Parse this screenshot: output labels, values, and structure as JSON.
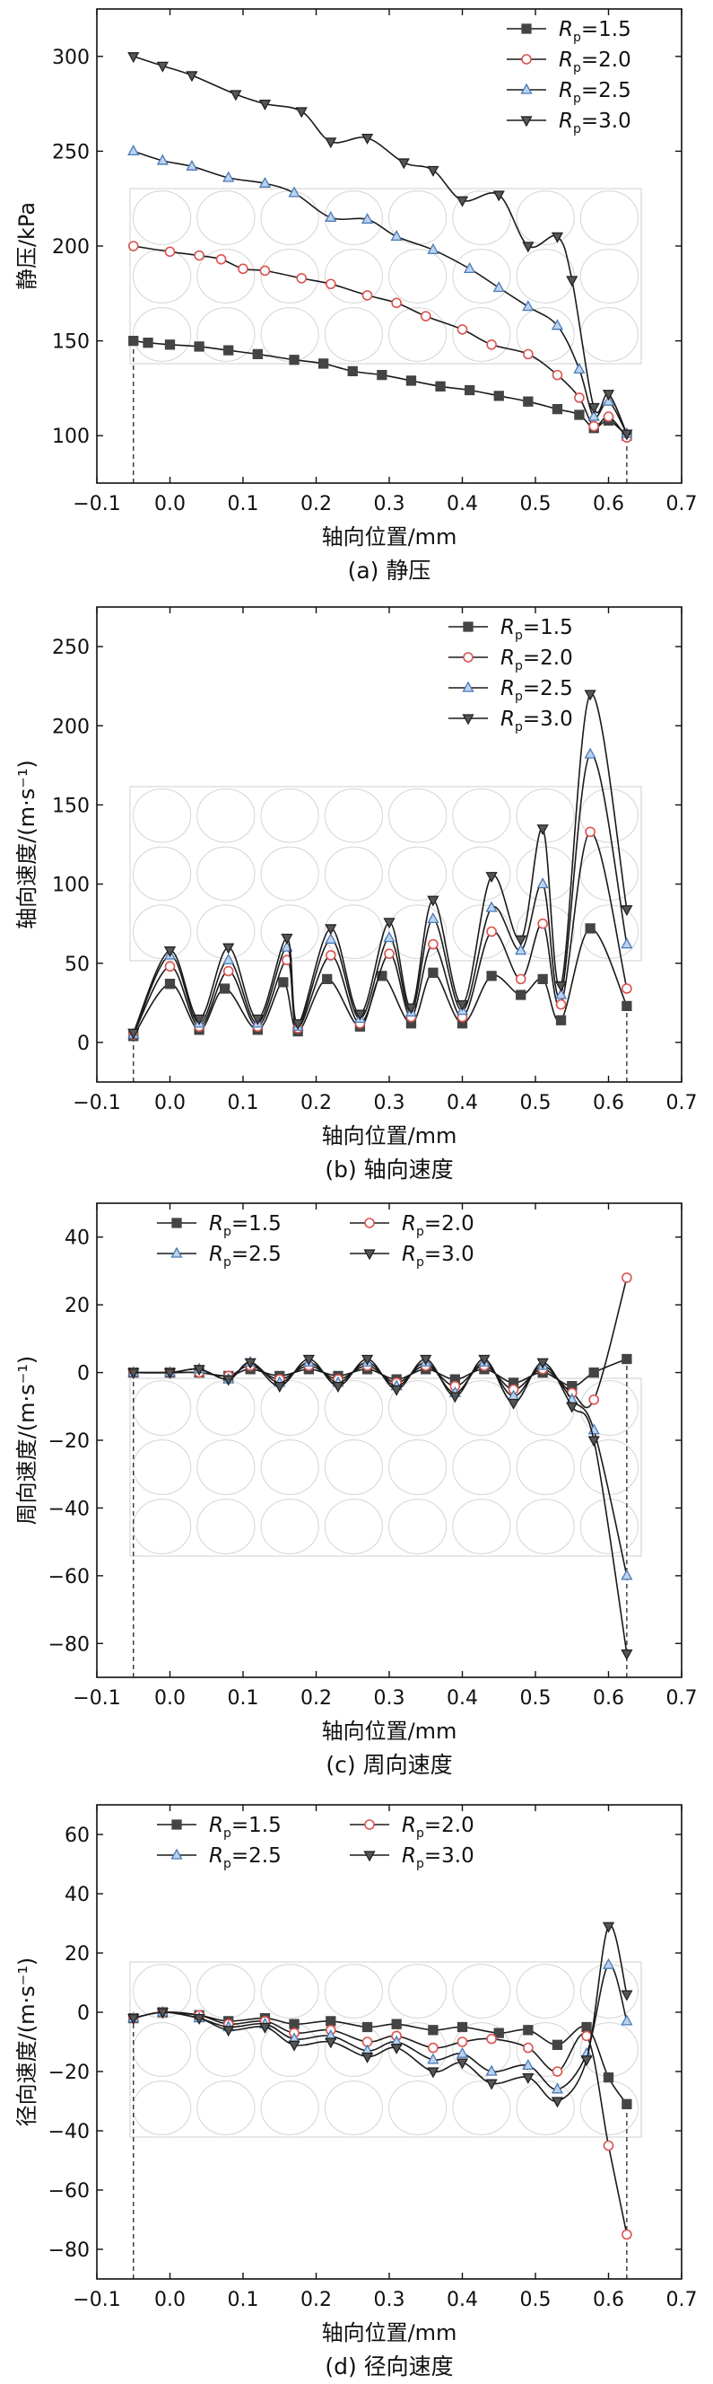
{
  "chart_data": [
    {
      "type": "line",
      "title": "",
      "caption": "(a) 静压",
      "xlabel": "轴向位置/mm",
      "ylabel": "静压/kPa",
      "xlim": [
        -0.1,
        0.7
      ],
      "ylim": [
        75,
        325
      ],
      "xticks": [
        -0.1,
        0.0,
        0.1,
        0.2,
        0.3,
        0.4,
        0.5,
        0.6,
        0.7
      ],
      "xticklabels": [
        "−0.1",
        "0.0",
        "0.1",
        "0.2",
        "0.3",
        "0.4",
        "0.5",
        "0.6",
        "0.7"
      ],
      "yticks": [
        100,
        150,
        200,
        250,
        300
      ],
      "yticklabels": [
        "100",
        "150",
        "200",
        "250",
        "300"
      ],
      "legend_position": "top-right",
      "legend_columns": 1,
      "series": [
        {
          "name": "R_p=1.5",
          "legend_main": "R",
          "legend_sub": "p",
          "legend_tail": "=1.5",
          "marker": "square",
          "color": "#444444",
          "x": [
            -0.05,
            -0.03,
            0.0,
            0.04,
            0.08,
            0.12,
            0.17,
            0.21,
            0.25,
            0.29,
            0.33,
            0.37,
            0.41,
            0.45,
            0.49,
            0.53,
            0.56,
            0.58,
            0.6,
            0.625
          ],
          "y": [
            150,
            149,
            148,
            147,
            145,
            143,
            140,
            138,
            134,
            132,
            129,
            126,
            124,
            121,
            118,
            114,
            111,
            104,
            108,
            100
          ]
        },
        {
          "name": "R_p=2.0",
          "legend_main": "R",
          "legend_sub": "p",
          "legend_tail": "=2.0",
          "marker": "circle",
          "color": "#d9534f",
          "x": [
            -0.05,
            0.0,
            0.04,
            0.07,
            0.1,
            0.13,
            0.18,
            0.22,
            0.27,
            0.31,
            0.35,
            0.4,
            0.44,
            0.49,
            0.53,
            0.56,
            0.58,
            0.6,
            0.625
          ],
          "y": [
            200,
            197,
            195,
            193,
            188,
            187,
            183,
            180,
            174,
            170,
            163,
            156,
            148,
            143,
            132,
            120,
            105,
            110,
            99
          ]
        },
        {
          "name": "R_p=2.5",
          "legend_main": "R",
          "legend_sub": "p",
          "legend_tail": "=2.5",
          "marker": "triangle-up",
          "color": "#4a7ab5",
          "x": [
            -0.05,
            -0.01,
            0.03,
            0.08,
            0.13,
            0.17,
            0.22,
            0.27,
            0.31,
            0.36,
            0.41,
            0.45,
            0.49,
            0.53,
            0.56,
            0.58,
            0.6,
            0.625
          ],
          "y": [
            250,
            245,
            242,
            236,
            233,
            228,
            215,
            214,
            205,
            198,
            188,
            178,
            168,
            158,
            135,
            110,
            118,
            101
          ]
        },
        {
          "name": "R_p=3.0",
          "legend_main": "R",
          "legend_sub": "p",
          "legend_tail": "=3.0",
          "marker": "triangle-down",
          "color": "#222222",
          "x": [
            -0.05,
            -0.01,
            0.03,
            0.09,
            0.13,
            0.18,
            0.22,
            0.27,
            0.32,
            0.36,
            0.4,
            0.45,
            0.49,
            0.53,
            0.55,
            0.58,
            0.6,
            0.625
          ],
          "y": [
            300,
            295,
            290,
            280,
            275,
            271,
            255,
            257,
            244,
            240,
            224,
            227,
            200,
            205,
            182,
            115,
            122,
            101
          ]
        }
      ]
    },
    {
      "type": "line",
      "title": "",
      "caption": "(b) 轴向速度",
      "xlabel": "轴向位置/mm",
      "ylabel": "轴向速度/(m·s⁻¹)",
      "xlim": [
        -0.1,
        0.7
      ],
      "ylim": [
        -25,
        275
      ],
      "xticks": [
        -0.1,
        0.0,
        0.1,
        0.2,
        0.3,
        0.4,
        0.5,
        0.6,
        0.7
      ],
      "xticklabels": [
        "−0.1",
        "0.0",
        "0.1",
        "0.2",
        "0.3",
        "0.4",
        "0.5",
        "0.6",
        "0.7"
      ],
      "yticks": [
        0,
        50,
        100,
        150,
        200,
        250
      ],
      "yticklabels": [
        "0",
        "50",
        "100",
        "150",
        "200",
        "250"
      ],
      "legend_position": "top-right",
      "legend_columns": 1,
      "series": [
        {
          "name": "R_p=1.5",
          "legend_main": "R",
          "legend_sub": "p",
          "legend_tail": "=1.5",
          "marker": "square",
          "color": "#444444",
          "x": [
            -0.05,
            0.0,
            0.04,
            0.075,
            0.12,
            0.155,
            0.175,
            0.215,
            0.26,
            0.29,
            0.33,
            0.36,
            0.4,
            0.44,
            0.48,
            0.51,
            0.535,
            0.575,
            0.625
          ],
          "y": [
            4,
            37,
            8,
            34,
            8,
            38,
            7,
            40,
            10,
            42,
            12,
            44,
            12,
            42,
            30,
            40,
            14,
            72,
            23
          ]
        },
        {
          "name": "R_p=2.0",
          "legend_main": "R",
          "legend_sub": "p",
          "legend_tail": "=2.0",
          "marker": "circle",
          "color": "#d9534f",
          "x": [
            -0.05,
            0.0,
            0.04,
            0.08,
            0.12,
            0.16,
            0.175,
            0.22,
            0.26,
            0.3,
            0.33,
            0.36,
            0.4,
            0.44,
            0.48,
            0.51,
            0.535,
            0.575,
            0.625
          ],
          "y": [
            5,
            48,
            10,
            45,
            10,
            52,
            9,
            55,
            12,
            56,
            16,
            62,
            16,
            70,
            40,
            75,
            24,
            133,
            34
          ]
        },
        {
          "name": "R_p=2.5",
          "legend_main": "R",
          "legend_sub": "p",
          "legend_tail": "=2.5",
          "marker": "triangle-up",
          "color": "#4a7ab5",
          "x": [
            -0.05,
            0.0,
            0.04,
            0.08,
            0.12,
            0.16,
            0.175,
            0.22,
            0.26,
            0.3,
            0.33,
            0.36,
            0.4,
            0.44,
            0.48,
            0.51,
            0.535,
            0.575,
            0.625
          ],
          "y": [
            5,
            55,
            12,
            52,
            12,
            60,
            10,
            65,
            15,
            66,
            19,
            78,
            20,
            85,
            58,
            100,
            30,
            182,
            62
          ]
        },
        {
          "name": "R_p=3.0",
          "legend_main": "R",
          "legend_sub": "p",
          "legend_tail": "=3.0",
          "marker": "triangle-down",
          "color": "#222222",
          "x": [
            -0.05,
            0.0,
            0.04,
            0.08,
            0.12,
            0.16,
            0.175,
            0.22,
            0.26,
            0.3,
            0.33,
            0.36,
            0.4,
            0.44,
            0.48,
            0.51,
            0.535,
            0.575,
            0.625
          ],
          "y": [
            6,
            58,
            15,
            60,
            15,
            66,
            12,
            72,
            18,
            76,
            22,
            90,
            24,
            105,
            65,
            135,
            36,
            220,
            84
          ]
        }
      ]
    },
    {
      "type": "line",
      "title": "",
      "caption": "(c) 周向速度",
      "xlabel": "轴向位置/mm",
      "ylabel": "周向速度/(m·s⁻¹)",
      "xlim": [
        -0.1,
        0.7
      ],
      "ylim": [
        -90,
        50
      ],
      "xticks": [
        -0.1,
        0.0,
        0.1,
        0.2,
        0.3,
        0.4,
        0.5,
        0.6,
        0.7
      ],
      "xticklabels": [
        "−0.1",
        "0.0",
        "0.1",
        "0.2",
        "0.3",
        "0.4",
        "0.5",
        "0.6",
        "0.7"
      ],
      "yticks": [
        -80,
        -60,
        -40,
        -20,
        0,
        20,
        40
      ],
      "yticklabels": [
        "−80",
        "−60",
        "−40",
        "−20",
        "0",
        "20",
        "40"
      ],
      "legend_position": "top",
      "legend_columns": 2,
      "series": [
        {
          "name": "R_p=1.5",
          "legend_main": "R",
          "legend_sub": "p",
          "legend_tail": "=1.5",
          "marker": "square",
          "color": "#444444",
          "x": [
            -0.05,
            0.0,
            0.04,
            0.08,
            0.11,
            0.15,
            0.19,
            0.23,
            0.27,
            0.31,
            0.35,
            0.39,
            0.43,
            0.47,
            0.51,
            0.55,
            0.58,
            0.625
          ],
          "y": [
            0,
            0,
            0,
            -1,
            1,
            -1,
            1,
            -1,
            1,
            -2,
            1,
            -2,
            1,
            -3,
            0,
            -4,
            0,
            4
          ]
        },
        {
          "name": "R_p=2.0",
          "legend_main": "R",
          "legend_sub": "p",
          "legend_tail": "=2.0",
          "marker": "circle",
          "color": "#d9534f",
          "x": [
            -0.05,
            0.0,
            0.04,
            0.08,
            0.11,
            0.15,
            0.19,
            0.23,
            0.27,
            0.31,
            0.35,
            0.39,
            0.43,
            0.47,
            0.51,
            0.55,
            0.58,
            0.625
          ],
          "y": [
            0,
            0,
            0,
            -1,
            2,
            -2,
            2,
            -2,
            2,
            -3,
            2,
            -4,
            2,
            -5,
            1,
            -6,
            -8,
            28
          ]
        },
        {
          "name": "R_p=2.5",
          "legend_main": "R",
          "legend_sub": "p",
          "legend_tail": "=2.5",
          "marker": "triangle-up",
          "color": "#4a7ab5",
          "x": [
            -0.05,
            0.0,
            0.04,
            0.08,
            0.11,
            0.15,
            0.19,
            0.23,
            0.27,
            0.31,
            0.35,
            0.39,
            0.43,
            0.47,
            0.51,
            0.55,
            0.58,
            0.625
          ],
          "y": [
            0,
            0,
            1,
            -2,
            3,
            -3,
            3,
            -3,
            3,
            -4,
            3,
            -6,
            3,
            -7,
            2,
            -8,
            -17,
            -60
          ]
        },
        {
          "name": "R_p=3.0",
          "legend_main": "R",
          "legend_sub": "p",
          "legend_tail": "=3.0",
          "marker": "triangle-down",
          "color": "#222222",
          "x": [
            -0.05,
            0.0,
            0.04,
            0.08,
            0.11,
            0.15,
            0.19,
            0.23,
            0.27,
            0.31,
            0.35,
            0.39,
            0.43,
            0.47,
            0.51,
            0.55,
            0.58,
            0.625
          ],
          "y": [
            0,
            0,
            1,
            -2,
            3,
            -4,
            4,
            -4,
            4,
            -5,
            4,
            -7,
            4,
            -9,
            3,
            -10,
            -20,
            -83
          ]
        }
      ]
    },
    {
      "type": "line",
      "title": "",
      "caption": "(d) 径向速度",
      "xlabel": "轴向位置/mm",
      "ylabel": "径向速度/(m·s⁻¹)",
      "xlim": [
        -0.1,
        0.7
      ],
      "ylim": [
        -90,
        70
      ],
      "xticks": [
        -0.1,
        0.0,
        0.1,
        0.2,
        0.3,
        0.4,
        0.5,
        0.6,
        0.7
      ],
      "xticklabels": [
        "−0.1",
        "0.0",
        "0.1",
        "0.2",
        "0.3",
        "0.4",
        "0.5",
        "0.6",
        "0.7"
      ],
      "yticks": [
        -80,
        -60,
        -40,
        -20,
        0,
        20,
        40,
        60
      ],
      "yticklabels": [
        "−80",
        "−60",
        "−40",
        "−20",
        "0",
        "20",
        "40",
        "60"
      ],
      "legend_position": "top",
      "legend_columns": 2,
      "series": [
        {
          "name": "R_p=1.5",
          "legend_main": "R",
          "legend_sub": "p",
          "legend_tail": "=1.5",
          "marker": "square",
          "color": "#444444",
          "x": [
            -0.05,
            -0.01,
            0.04,
            0.08,
            0.13,
            0.17,
            0.22,
            0.27,
            0.31,
            0.36,
            0.4,
            0.45,
            0.49,
            0.53,
            0.57,
            0.6,
            0.625
          ],
          "y": [
            -2,
            0,
            -1,
            -3,
            -2,
            -4,
            -3,
            -5,
            -4,
            -6,
            -5,
            -7,
            -6,
            -11,
            -5,
            -22,
            -31
          ]
        },
        {
          "name": "R_p=2.0",
          "legend_main": "R",
          "legend_sub": "p",
          "legend_tail": "=2.0",
          "marker": "circle",
          "color": "#d9534f",
          "x": [
            -0.05,
            -0.01,
            0.04,
            0.08,
            0.13,
            0.17,
            0.22,
            0.27,
            0.31,
            0.36,
            0.4,
            0.44,
            0.49,
            0.53,
            0.57,
            0.6,
            0.625
          ],
          "y": [
            -2,
            0,
            -1,
            -4,
            -3,
            -7,
            -6,
            -10,
            -8,
            -12,
            -10,
            -9,
            -12,
            -20,
            -8,
            -45,
            -75
          ]
        },
        {
          "name": "R_p=2.5",
          "legend_main": "R",
          "legend_sub": "p",
          "legend_tail": "=2.5",
          "marker": "triangle-up",
          "color": "#4a7ab5",
          "x": [
            -0.05,
            -0.01,
            0.04,
            0.08,
            0.13,
            0.17,
            0.22,
            0.27,
            0.31,
            0.36,
            0.4,
            0.44,
            0.49,
            0.53,
            0.57,
            0.6,
            0.625
          ],
          "y": [
            -2,
            0,
            -2,
            -5,
            -4,
            -9,
            -8,
            -13,
            -10,
            -16,
            -14,
            -20,
            -18,
            -26,
            -14,
            16,
            -3
          ]
        },
        {
          "name": "R_p=3.0",
          "legend_main": "R",
          "legend_sub": "p",
          "legend_tail": "=3.0",
          "marker": "triangle-down",
          "color": "#222222",
          "x": [
            -0.05,
            -0.01,
            0.04,
            0.08,
            0.13,
            0.17,
            0.22,
            0.27,
            0.31,
            0.36,
            0.4,
            0.44,
            0.49,
            0.53,
            0.57,
            0.6,
            0.625
          ],
          "y": [
            -2,
            0,
            -2,
            -6,
            -5,
            -11,
            -10,
            -15,
            -12,
            -20,
            -17,
            -24,
            -22,
            -30,
            -16,
            29,
            6
          ]
        }
      ]
    }
  ]
}
